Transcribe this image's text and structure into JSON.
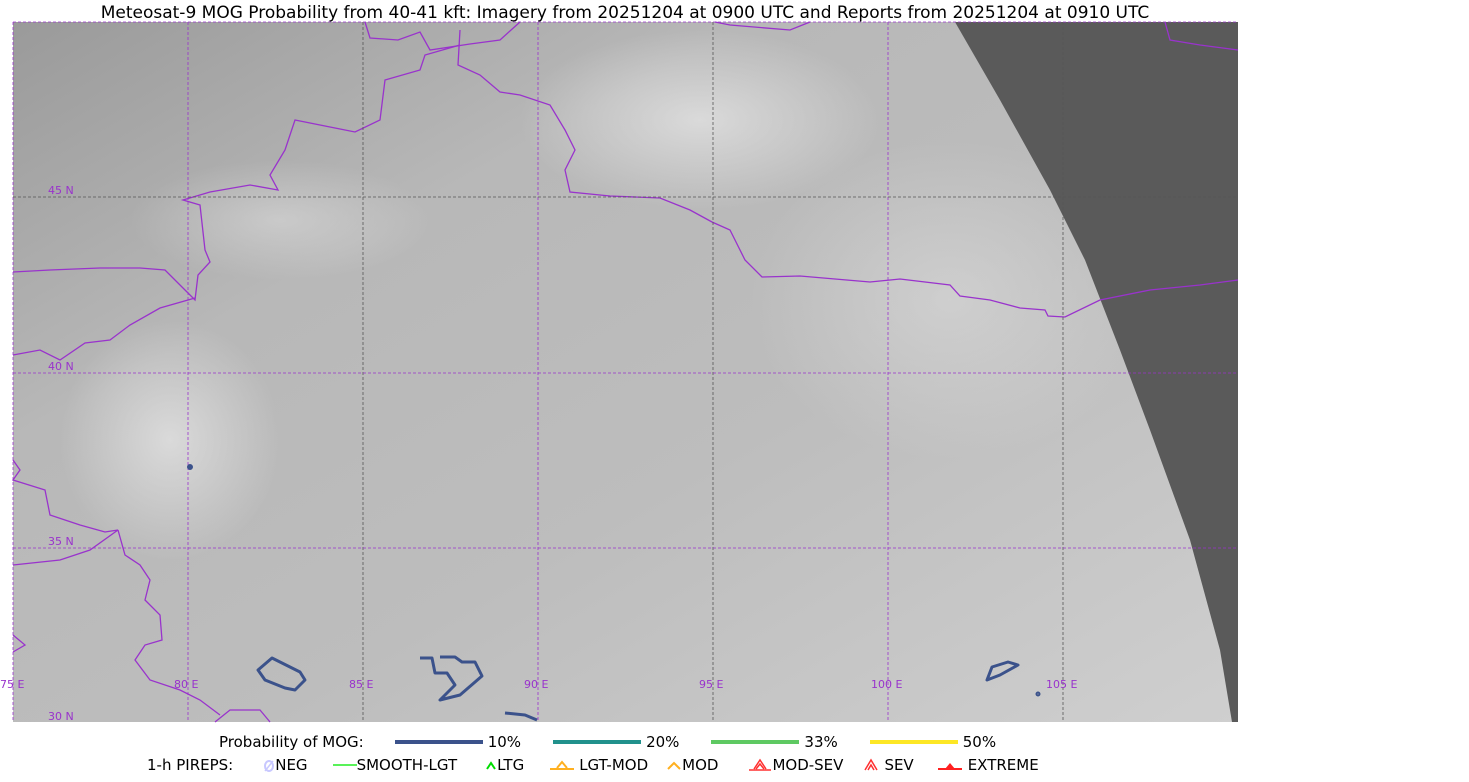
{
  "title": "Meteosat-9 MOG Probability from 40-41 kft: Imagery from 20251204 at 0900 UTC and Reports from 20251204 at 0910 UTC",
  "map": {
    "longitude_labels": [
      "75 E",
      "80 E",
      "85 E",
      "90 E",
      "95 E",
      "100 E",
      "105 E"
    ],
    "latitude_labels": [
      "45 N",
      "40 N",
      "35 N",
      "30 N"
    ],
    "grid_color": "#9933cc",
    "border_color": "#9933cc",
    "no_data_color": "#5a5a5a"
  },
  "legend": {
    "probability_title": "Probability of MOG:",
    "probabilities": [
      {
        "label": "10%",
        "color": "#3b528b"
      },
      {
        "label": "20%",
        "color": "#21918c"
      },
      {
        "label": "33%",
        "color": "#5ec962"
      },
      {
        "label": "50%",
        "color": "#fde725"
      }
    ],
    "pireps_title": "1-h PIREPS:",
    "pireps": [
      {
        "label": "NEG",
        "color": "#c8c8ff",
        "icon": "neg-icon"
      },
      {
        "label": "SMOOTH-LGT",
        "color": "#22ee22",
        "icon": "line-icon"
      },
      {
        "label": "LTG",
        "color": "#00dd00",
        "icon": "caret-icon"
      },
      {
        "label": "LGT-MOD",
        "color": "#ffb020",
        "icon": "caret-bar-icon"
      },
      {
        "label": "MOD",
        "color": "#ffb020",
        "icon": "caret-icon"
      },
      {
        "label": "MOD-SEV",
        "color": "#ff3030",
        "icon": "double-caret-bar-icon"
      },
      {
        "label": "SEV",
        "color": "#ff3030",
        "icon": "double-caret-icon"
      },
      {
        "label": "EXTREME",
        "color": "#ff2020",
        "icon": "filled-triangle-icon"
      }
    ]
  }
}
